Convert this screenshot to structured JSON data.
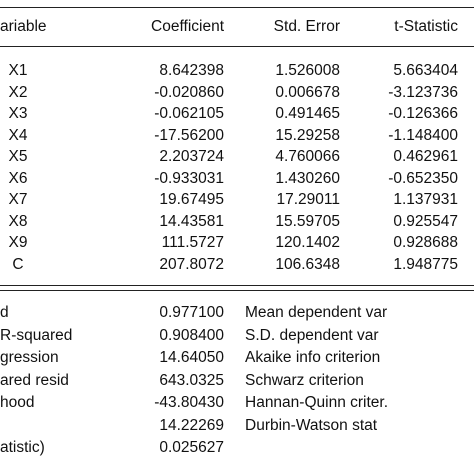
{
  "header": {
    "variable": "ariable",
    "coefficient": "Coefficient",
    "std_error": "Std. Error",
    "t_statistic": "t-Statistic"
  },
  "rows": [
    {
      "variable": "X1",
      "coefficient": "8.642398",
      "std_error": "1.526008",
      "t_statistic": "5.663404"
    },
    {
      "variable": "X2",
      "coefficient": "-0.020860",
      "std_error": "0.006678",
      "t_statistic": "-3.123736"
    },
    {
      "variable": "X3",
      "coefficient": "-0.062105",
      "std_error": "0.491465",
      "t_statistic": "-0.126366"
    },
    {
      "variable": "X4",
      "coefficient": "-17.56200",
      "std_error": "15.29258",
      "t_statistic": "-1.148400"
    },
    {
      "variable": "X5",
      "coefficient": "2.203724",
      "std_error": "4.760066",
      "t_statistic": "0.462961"
    },
    {
      "variable": "X6",
      "coefficient": "-0.933031",
      "std_error": "1.430260",
      "t_statistic": "-0.652350"
    },
    {
      "variable": "X7",
      "coefficient": "19.67495",
      "std_error": "17.29011",
      "t_statistic": "1.137931"
    },
    {
      "variable": "X8",
      "coefficient": "14.43581",
      "std_error": "15.59705",
      "t_statistic": "0.925547"
    },
    {
      "variable": "X9",
      "coefficient": "111.5727",
      "std_error": "120.1402",
      "t_statistic": "0.928688"
    },
    {
      "variable": "C",
      "coefficient": "207.8072",
      "std_error": "106.6348",
      "t_statistic": "1.948775"
    }
  ],
  "stats": [
    {
      "label": "d",
      "value": "0.977100",
      "label2": "Mean dependent var"
    },
    {
      "label": "R-squared",
      "value": "0.908400",
      "label2": "S.D. dependent var"
    },
    {
      "label": "gression",
      "value": "14.64050",
      "label2": "Akaike info criterion"
    },
    {
      "label": "ared resid",
      "value": "643.0325",
      "label2": "Schwarz criterion"
    },
    {
      "label": "hood",
      "value": "-43.80430",
      "label2": "Hannan-Quinn criter."
    },
    {
      "label": "",
      "value": "14.22269",
      "label2": "Durbin-Watson stat"
    },
    {
      "label": "atistic)",
      "value": "0.025627",
      "label2": ""
    }
  ]
}
